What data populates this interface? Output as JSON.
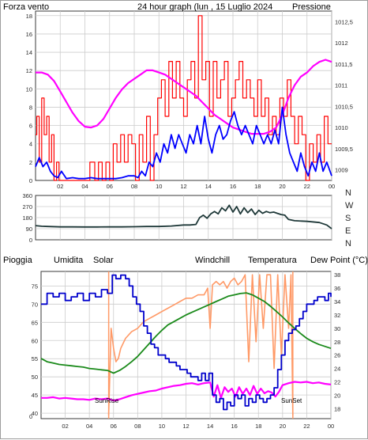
{
  "header": {
    "left": "Forza vento",
    "center": "24 hour graph (lun , 15 Luglio 2024",
    "right": "Pressione"
  },
  "colors": {
    "wind": "#ff0000",
    "pressure": "#ff00ff",
    "gust": "#0000ff",
    "direction": "#1e3838",
    "humidity": "#0000cc",
    "solar": "#ff9966",
    "temperature": "#1a8a1a",
    "dewpoint": "#ff00ff",
    "sun_marker": "#ff9966",
    "grid": "#cccccc"
  },
  "bottom_labels": {
    "rain": "Pioggia",
    "humidity": "Umidita",
    "solar": "Solar",
    "windchill": "Windchill",
    "temperature": "Temperatura",
    "dewpoint": "Dew Point (°C)"
  },
  "chart_data": [
    {
      "type": "line",
      "id": "wind-pressure",
      "xlim": [
        0,
        24
      ],
      "x_ticks": [
        "02",
        "04",
        "06",
        "08",
        "10",
        "12",
        "14",
        "16",
        "18",
        "20",
        "22",
        "00"
      ],
      "y_left_ticks": [
        0,
        2,
        4,
        6,
        8,
        10,
        12,
        14,
        16,
        18
      ],
      "ylim_left": [
        0,
        18.5
      ],
      "y_right_ticks": [
        "1009",
        "1009,5",
        "1010",
        "1010,5",
        "1011",
        "1011,5",
        "1012",
        "1012,5"
      ],
      "ylim_right": [
        1008.75,
        1012.75
      ],
      "grid": true,
      "series": [
        {
          "key": "wind",
          "x": [
            0,
            0.1,
            0.3,
            0.5,
            0.7,
            0.9,
            1.1,
            1.3,
            1.5,
            1.7,
            1.9,
            2.2,
            2.5,
            3,
            3.5,
            4,
            4.4,
            4.8,
            5.1,
            5.4,
            5.7,
            6,
            6.3,
            6.6,
            6.9,
            7.2,
            7.5,
            7.8,
            8.1,
            8.4,
            8.7,
            9,
            9.3,
            9.6,
            9.9,
            10.2,
            10.5,
            10.8,
            11.1,
            11.4,
            11.7,
            12,
            12.3,
            12.6,
            12.9,
            13.2,
            13.5,
            13.8,
            14.1,
            14.4,
            14.7,
            15,
            15.3,
            15.6,
            15.9,
            16.2,
            16.5,
            16.8,
            17.1,
            17.4,
            17.7,
            18,
            18.3,
            18.6,
            18.9,
            19.2,
            19.5,
            19.8,
            20.1,
            20.4,
            20.7,
            21,
            21.3,
            21.6,
            21.9,
            22.2,
            22.5,
            22.8,
            23.1,
            23.4,
            23.7,
            24
          ],
          "values": [
            5,
            7,
            2,
            9,
            5,
            7,
            2,
            5,
            0,
            2,
            0,
            0,
            0,
            0,
            0,
            0,
            2,
            0,
            2,
            0,
            2,
            0,
            4,
            2,
            5,
            2,
            5,
            4,
            0,
            5,
            2,
            7,
            0,
            5,
            9,
            11,
            7,
            13,
            9,
            13,
            9,
            7,
            11,
            13,
            9,
            18,
            11,
            13,
            7,
            13,
            9,
            11,
            13,
            7,
            9,
            11,
            13,
            9,
            11,
            9,
            7,
            11,
            7,
            9,
            5,
            7,
            5,
            9,
            7,
            11,
            7,
            4,
            7,
            5,
            0,
            4,
            2,
            5,
            2,
            7,
            4,
            4
          ]
        },
        {
          "key": "pressure",
          "x": [
            0,
            0.5,
            1,
            1.5,
            2,
            2.5,
            3,
            3.5,
            4,
            4.5,
            5,
            5.5,
            6,
            6.5,
            7,
            7.5,
            8,
            8.5,
            9,
            9.5,
            10,
            10.5,
            11,
            11.5,
            12,
            12.5,
            13,
            13.5,
            14,
            14.5,
            15,
            15.5,
            16,
            16.5,
            17,
            17.5,
            18,
            18.5,
            19,
            19.5,
            20,
            20.5,
            21,
            21.5,
            22,
            22.5,
            23,
            23.5,
            24
          ],
          "values": [
            1011.3,
            1011.3,
            1011.25,
            1011.1,
            1010.85,
            1010.6,
            1010.35,
            1010.15,
            1010.02,
            1010,
            1010.05,
            1010.2,
            1010.45,
            1010.7,
            1010.9,
            1011.05,
            1011.15,
            1011.25,
            1011.35,
            1011.35,
            1011.3,
            1011.25,
            1011.15,
            1011.05,
            1010.95,
            1010.85,
            1010.75,
            1010.6,
            1010.45,
            1010.3,
            1010.2,
            1010.1,
            1010,
            1009.95,
            1009.9,
            1009.85,
            1009.85,
            1009.85,
            1009.9,
            1010,
            1010.3,
            1010.7,
            1011.0,
            1011.2,
            1011.3,
            1011.45,
            1011.55,
            1011.6,
            1011.55
          ]
        },
        {
          "key": "gust",
          "x": [
            0,
            0.3,
            0.6,
            0.9,
            1.2,
            1.5,
            1.8,
            2.1,
            2.5,
            3,
            3.5,
            4,
            4.5,
            5,
            5.5,
            6,
            6.5,
            7,
            7.5,
            8,
            8.3,
            8.6,
            8.9,
            9.2,
            9.5,
            9.8,
            10.1,
            10.4,
            10.7,
            11,
            11.3,
            11.6,
            11.9,
            12.2,
            12.5,
            12.8,
            13.1,
            13.4,
            13.7,
            14,
            14.3,
            14.6,
            14.9,
            15.2,
            15.5,
            15.8,
            16.1,
            16.4,
            16.7,
            17,
            17.3,
            17.6,
            17.9,
            18.2,
            18.5,
            18.8,
            19.1,
            19.4,
            19.7,
            20,
            20.3,
            20.6,
            20.9,
            21.2,
            21.5,
            21.8,
            22.1,
            22.4,
            22.7,
            23,
            23.3,
            23.6,
            24
          ],
          "values": [
            1.5,
            2.5,
            1.5,
            2,
            1,
            0.5,
            0.3,
            1,
            0.2,
            0.3,
            0.2,
            0.2,
            0.3,
            0.2,
            0.2,
            0.2,
            0.2,
            0.3,
            0.5,
            0.5,
            0.3,
            1,
            0.5,
            2,
            1.5,
            3,
            2,
            4,
            3,
            5,
            3.5,
            5,
            4,
            3,
            5,
            4,
            6,
            4,
            7,
            4.5,
            3,
            5,
            6,
            4.5,
            5,
            6.5,
            7.5,
            6,
            5,
            6,
            5,
            4,
            6,
            5,
            4,
            5,
            4,
            5.5,
            4,
            8,
            5,
            3,
            2,
            1,
            3,
            1.5,
            0.5,
            2,
            1,
            3,
            1,
            2,
            0.5
          ]
        }
      ]
    },
    {
      "type": "line",
      "id": "wind-direction",
      "xlim": [
        0,
        24
      ],
      "y_ticks": [
        0,
        90,
        180,
        270,
        360
      ],
      "ylim": [
        0,
        360
      ],
      "direction_ticks": [
        "N",
        "W",
        "S",
        "E",
        "N"
      ],
      "grid": true,
      "series": [
        {
          "key": "direction",
          "x": [
            0,
            0.5,
            1,
            2,
            3,
            4,
            5,
            6,
            7,
            8,
            9,
            10,
            11,
            12,
            12.5,
            13,
            13.3,
            13.6,
            13.9,
            14.2,
            14.5,
            14.8,
            15.1,
            15.4,
            15.7,
            16,
            16.3,
            16.6,
            16.9,
            17.2,
            17.5,
            17.8,
            18.1,
            18.4,
            18.7,
            19,
            19.3,
            19.6,
            19.9,
            20.2,
            20.5,
            21,
            22,
            23,
            23.6,
            24
          ],
          "values": [
            115,
            110,
            108,
            105,
            105,
            104,
            104,
            105,
            105,
            106,
            108,
            108,
            112,
            120,
            120,
            125,
            180,
            200,
            175,
            210,
            230,
            210,
            260,
            235,
            280,
            225,
            270,
            210,
            260,
            220,
            250,
            205,
            240,
            215,
            230,
            220,
            225,
            215,
            205,
            200,
            165,
            155,
            150,
            140,
            120,
            90
          ]
        }
      ]
    },
    {
      "type": "line",
      "id": "temp-humidity",
      "xlim": [
        0,
        24
      ],
      "y_left_ticks": [
        40,
        45,
        50,
        55,
        60,
        65,
        70,
        75
      ],
      "ylim_left": [
        38.5,
        79
      ],
      "y_right_ticks": [
        18,
        20,
        22,
        24,
        26,
        28,
        30,
        32,
        34,
        36,
        38
      ],
      "ylim_right": [
        16.5,
        38.5
      ],
      "rain_zero_label": "0",
      "sunrise_x": 5.6,
      "sunset_x": 20.85,
      "sunrise_label": "SunRise",
      "sunset_label": "SunSet",
      "grid": true,
      "series": [
        {
          "key": "humidity",
          "x": [
            0,
            0.5,
            1,
            1.5,
            2,
            2.5,
            3,
            3.5,
            4,
            4.5,
            5,
            5.5,
            5.9,
            6.2,
            6.6,
            7,
            7.3,
            7.6,
            7.9,
            8.2,
            8.5,
            8.8,
            9.1,
            9.4,
            9.7,
            10,
            10.3,
            10.6,
            10.9,
            11.2,
            11.5,
            11.8,
            12.1,
            12.4,
            12.7,
            13,
            13.3,
            13.6,
            13.9,
            14.2,
            14.5,
            14.8,
            15.1,
            15.4,
            15.7,
            16,
            16.3,
            16.6,
            16.9,
            17.2,
            17.5,
            17.8,
            18.1,
            18.4,
            18.7,
            19,
            19.3,
            19.6,
            19.9,
            20.2,
            20.5,
            20.8,
            21.1,
            21.4,
            21.7,
            22,
            22.3,
            22.6,
            22.9,
            23.2,
            23.5,
            23.8,
            24
          ],
          "values": [
            70,
            73,
            72,
            73,
            71,
            72,
            73,
            71,
            73,
            72,
            74,
            73,
            78,
            77,
            78,
            77,
            75,
            72,
            70,
            68,
            64,
            62,
            59,
            58,
            56,
            56,
            55,
            54,
            54,
            53,
            52,
            52,
            51,
            50,
            50,
            49,
            51,
            49,
            51,
            45,
            43,
            44,
            41,
            43,
            42,
            45,
            44,
            45,
            42,
            44,
            43,
            45,
            44,
            43,
            44,
            45,
            47,
            52,
            56,
            60,
            62,
            63,
            64,
            66,
            68,
            70,
            70,
            71,
            72,
            72,
            71,
            73,
            72
          ]
        },
        {
          "key": "solar",
          "x": [
            5.6,
            5.8,
            6,
            6.2,
            6.4,
            6.6,
            7,
            7.5,
            8,
            8.5,
            9,
            9.5,
            10,
            10.5,
            11,
            11.5,
            12,
            12.5,
            13,
            13.5,
            13.8,
            14,
            14.2,
            14.5,
            14.8,
            15.1,
            15.4,
            15.7,
            16,
            16.3,
            16.6,
            16.9,
            17.2,
            17.5,
            17.8,
            18.1,
            18.4,
            18.7,
            19,
            19.3,
            19.6,
            19.9,
            20.2,
            20.5,
            20.7,
            20.85
          ],
          "values": [
            17,
            30,
            27,
            25,
            25.5,
            27,
            28.5,
            29.5,
            30,
            31,
            31.5,
            32,
            32.5,
            33,
            33.5,
            34,
            34.5,
            34.5,
            35,
            35,
            36,
            30,
            36.5,
            37,
            36.5,
            37,
            36,
            37,
            37.5,
            36.5,
            37,
            38,
            25,
            38,
            28,
            38,
            30,
            38,
            38,
            24,
            38,
            26,
            38,
            30,
            38,
            17
          ]
        },
        {
          "key": "temperature",
          "x": [
            0,
            0.5,
            1,
            1.5,
            2,
            2.5,
            3,
            3.5,
            4,
            4.5,
            5,
            5.5,
            6,
            6.5,
            7,
            7.5,
            8,
            8.5,
            9,
            9.5,
            10,
            10.5,
            11,
            11.5,
            12,
            12.5,
            13,
            13.5,
            14,
            14.5,
            15,
            15.5,
            16,
            16.5,
            17,
            17.5,
            18,
            18.5,
            19,
            19.5,
            20,
            20.5,
            21,
            21.5,
            22,
            22.5,
            23,
            23.5,
            24
          ],
          "values": [
            25.5,
            25,
            24.8,
            24.6,
            24.5,
            24.4,
            24.3,
            24.2,
            24,
            23.9,
            23.8,
            23.7,
            23.3,
            23.7,
            24.3,
            25,
            25.8,
            26.8,
            27.8,
            28.8,
            29.7,
            30.5,
            31,
            31.5,
            32,
            32.4,
            32.8,
            33.2,
            33.6,
            34,
            34.4,
            34.8,
            35,
            35.2,
            35.3,
            35,
            34.5,
            34,
            33.3,
            32.5,
            31.7,
            30.8,
            30,
            29.2,
            28.5,
            28,
            27.6,
            27.3,
            27
          ]
        },
        {
          "key": "dewpoint",
          "x": [
            0,
            0.5,
            1,
            1.5,
            2,
            2.5,
            3,
            3.5,
            4,
            4.5,
            5,
            5.5,
            6,
            6.5,
            7,
            7.5,
            8,
            8.5,
            9,
            9.5,
            10,
            10.5,
            11,
            11.5,
            12,
            12.5,
            13,
            13.5,
            14,
            14.3,
            14.6,
            14.9,
            15.2,
            15.5,
            15.8,
            16.1,
            16.4,
            16.7,
            17,
            17.3,
            17.6,
            17.9,
            18.2,
            18.5,
            18.8,
            19.1,
            19.4,
            19.7,
            20,
            20.5,
            21,
            21.5,
            22,
            22.5,
            23,
            23.5,
            24
          ],
          "values": [
            19.6,
            19.6,
            19.7,
            19.5,
            19.6,
            19.5,
            19.4,
            19.4,
            19.3,
            19.5,
            19.4,
            19.5,
            19.2,
            19.4,
            19.7,
            20,
            20.2,
            20.4,
            20.6,
            20.7,
            21,
            21.2,
            21.4,
            21.5,
            21.7,
            21.8,
            21.6,
            21.8,
            21.9,
            19.8,
            21.5,
            19.6,
            21.2,
            20.5,
            21,
            19.8,
            21.2,
            20.2,
            21,
            20,
            21.4,
            20.2,
            21,
            20.3,
            20.6,
            20.4,
            19.8,
            20.5,
            21.5,
            21.8,
            22,
            21.9,
            22,
            21.8,
            21.9,
            21.7,
            21.6
          ]
        }
      ]
    }
  ]
}
